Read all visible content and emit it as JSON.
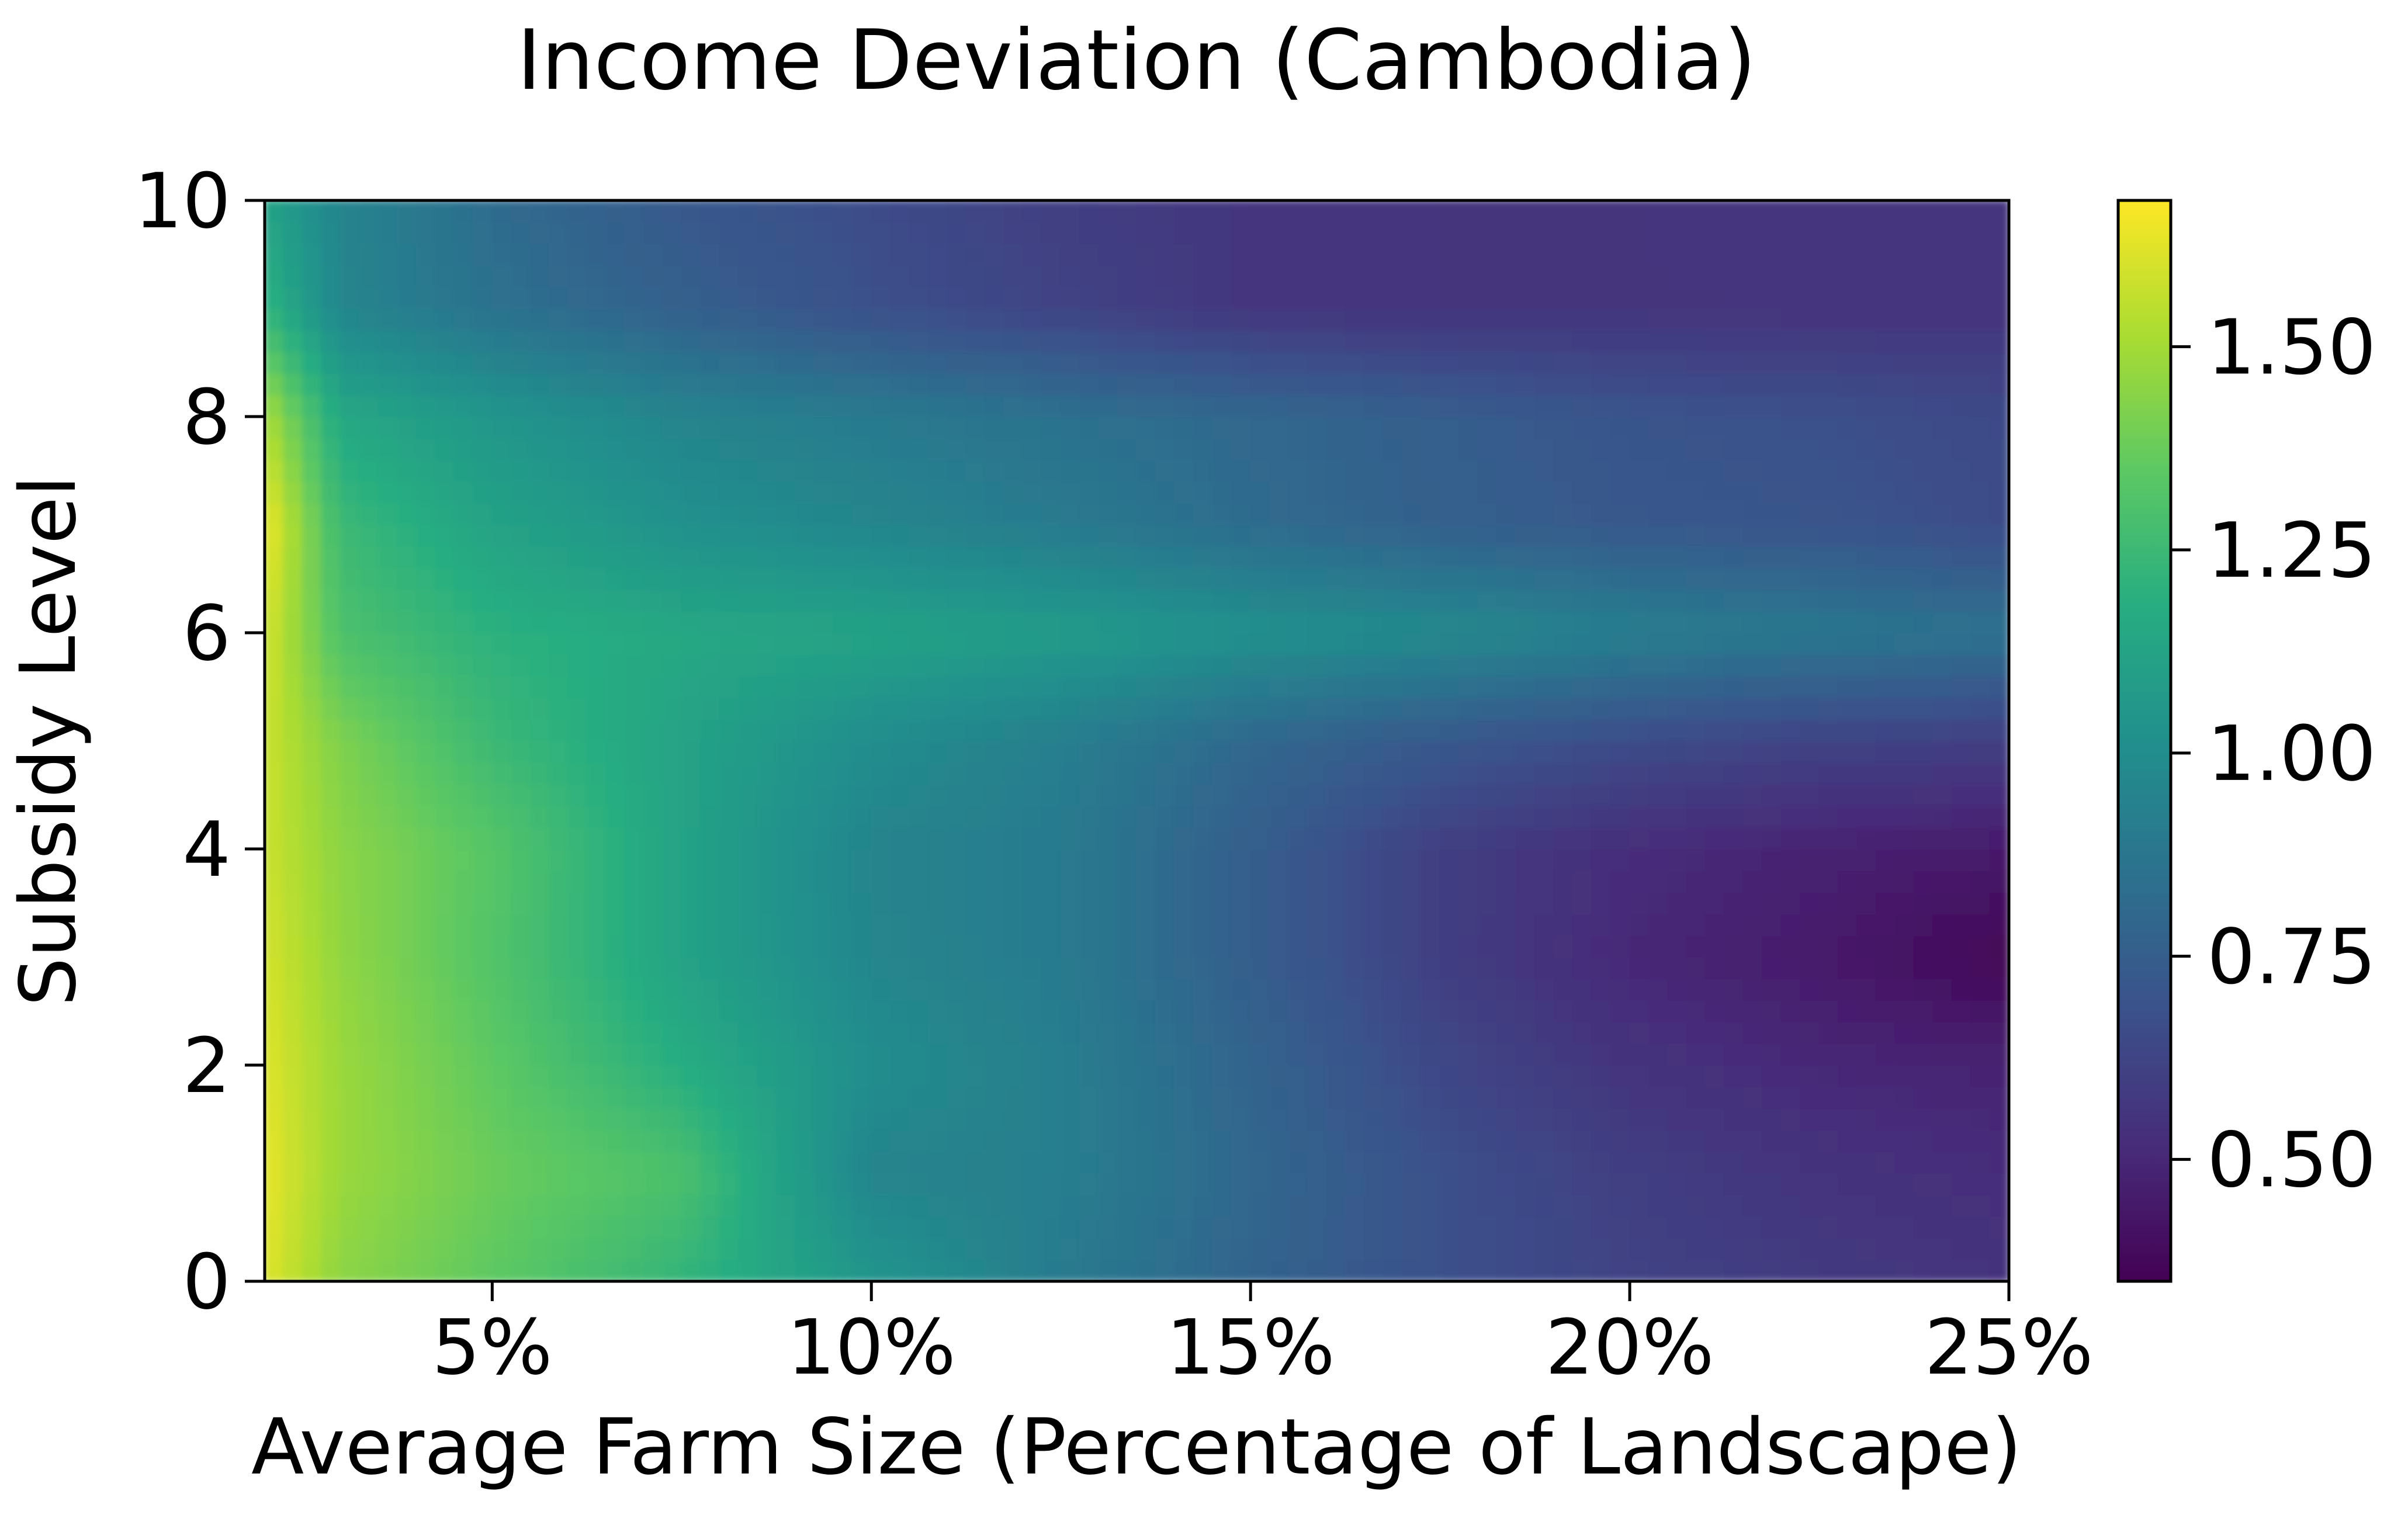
{
  "chart_data": {
    "type": "heatmap",
    "title": "Income Deviation (Cambodia)",
    "xlabel": "Average Farm Size (Percentage of Landscape)",
    "ylabel": "Subsidy Level",
    "xlim": [
      2,
      25
    ],
    "ylim": [
      0,
      10
    ],
    "x_ticks": [
      5,
      10,
      15,
      20,
      25
    ],
    "x_tick_labels": [
      "5%",
      "10%",
      "15%",
      "20%",
      "25%"
    ],
    "y_ticks": [
      0,
      2,
      4,
      6,
      8,
      10
    ],
    "y_tick_labels": [
      "0",
      "2",
      "4",
      "6",
      "8",
      "10"
    ],
    "colormap": "viridis",
    "colorbar": {
      "vmin": 0.35,
      "vmax": 1.68,
      "ticks": [
        0.5,
        0.75,
        1.0,
        1.25,
        1.5
      ],
      "tick_labels": [
        "0.50",
        "0.75",
        "1.00",
        "1.25",
        "1.50"
      ]
    },
    "grid": false,
    "x": [
      2,
      3,
      5,
      7.5,
      10,
      12.5,
      15,
      17.5,
      20,
      22.5,
      25
    ],
    "y": [
      0,
      1,
      2,
      3,
      4,
      5,
      6,
      7,
      8,
      9,
      10
    ],
    "z": [
      [
        1.62,
        1.45,
        1.35,
        1.22,
        1.05,
        0.9,
        0.78,
        0.68,
        0.62,
        0.58,
        0.55
      ],
      [
        1.64,
        1.48,
        1.38,
        1.3,
        0.95,
        0.92,
        0.8,
        0.68,
        0.6,
        0.55,
        0.52
      ],
      [
        1.62,
        1.48,
        1.35,
        1.18,
        1.0,
        0.92,
        0.78,
        0.64,
        0.55,
        0.5,
        0.48
      ],
      [
        1.6,
        1.46,
        1.32,
        1.12,
        0.96,
        0.9,
        0.75,
        0.6,
        0.5,
        0.45,
        0.36
      ],
      [
        1.58,
        1.45,
        1.33,
        1.12,
        0.95,
        0.9,
        0.75,
        0.6,
        0.52,
        0.48,
        0.45
      ],
      [
        1.58,
        1.42,
        1.25,
        1.12,
        1.0,
        0.92,
        0.8,
        0.72,
        0.66,
        0.62,
        0.6
      ],
      [
        1.6,
        1.3,
        1.2,
        1.15,
        1.12,
        1.08,
        1.02,
        0.98,
        0.92,
        0.88,
        0.85
      ],
      [
        1.66,
        1.25,
        1.12,
        1.02,
        0.96,
        0.9,
        0.82,
        0.76,
        0.72,
        0.7,
        0.66
      ],
      [
        1.52,
        1.15,
        1.05,
        0.95,
        0.9,
        0.85,
        0.8,
        0.75,
        0.7,
        0.68,
        0.65
      ],
      [
        1.22,
        0.96,
        0.85,
        0.76,
        0.68,
        0.62,
        0.56,
        0.55,
        0.55,
        0.55,
        0.55
      ],
      [
        1.12,
        0.95,
        0.82,
        0.72,
        0.66,
        0.6,
        0.56,
        0.55,
        0.55,
        0.56,
        0.56
      ]
    ]
  }
}
